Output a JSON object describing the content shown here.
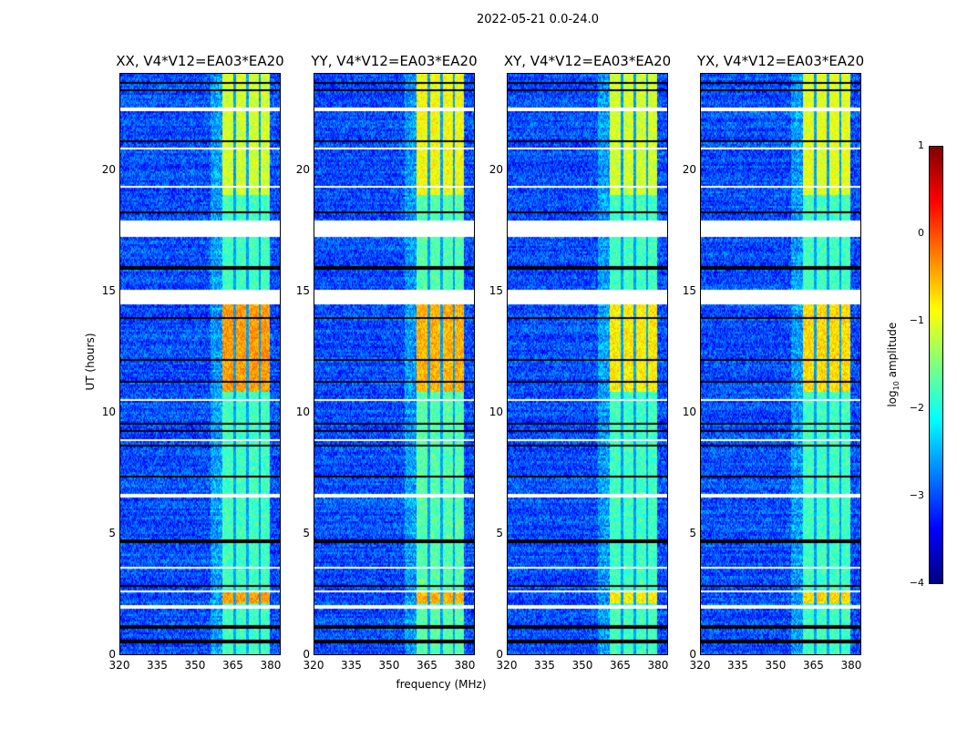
{
  "title": "2022-05-21 0.0-24.0",
  "xlabel": "frequency (MHz)",
  "ylabel": "UT (hours)",
  "chart_data": [
    {
      "type": "heatmap",
      "title": "XX, V4*V12=EA03*EA20",
      "xlim": [
        320,
        384
      ],
      "ylim": [
        0,
        24
      ],
      "band_level": -1.8,
      "bright_level": -0.4,
      "upper_level": -1.1
    },
    {
      "type": "heatmap",
      "title": "YY, V4*V12=EA03*EA20",
      "xlim": [
        320,
        384
      ],
      "ylim": [
        0,
        24
      ],
      "band_level": -1.7,
      "bright_level": -0.5,
      "upper_level": -0.9
    },
    {
      "type": "heatmap",
      "title": "XY, V4*V12=EA03*EA20",
      "xlim": [
        320,
        384
      ],
      "ylim": [
        0,
        24
      ],
      "band_level": -1.8,
      "bright_level": -0.8,
      "upper_level": -1.1
    },
    {
      "type": "heatmap",
      "title": "YX, V4*V12=EA03*EA20",
      "xlim": [
        320,
        384
      ],
      "ylim": [
        0,
        24
      ],
      "band_level": -1.8,
      "bright_level": -0.7,
      "upper_level": -1.0
    }
  ],
  "shared": {
    "xticks": [
      "320",
      "335",
      "350",
      "365",
      "380"
    ],
    "xtick_values": [
      320,
      335,
      350,
      365,
      380
    ],
    "yticks": [
      "0",
      "5",
      "10",
      "15",
      "20"
    ],
    "ytick_values": [
      0,
      5,
      10,
      15,
      20
    ],
    "background_level": -3.0,
    "band_mhz": [
      360.5,
      379.5
    ],
    "channel_gaps_mhz": [
      365.5,
      370.5,
      375.5
    ],
    "bright_hours": [
      [
        10.9,
        14.5
      ],
      [
        2.2,
        2.6
      ]
    ],
    "upper_hours": [
      19.0,
      24.0
    ],
    "flagged_hours": [
      [
        17.3,
        17.95
      ],
      [
        14.5,
        15.1
      ],
      [
        6.55,
        6.7
      ],
      [
        2.6,
        2.72
      ],
      [
        1.95,
        2.08
      ],
      [
        22.45,
        22.6
      ],
      [
        15.3,
        15.35
      ],
      [
        19.3,
        19.35
      ],
      [
        20.9,
        20.95
      ],
      [
        3.6,
        3.65
      ],
      [
        7.1,
        7.15
      ],
      [
        8.9,
        8.95
      ],
      [
        10.55,
        10.6
      ]
    ],
    "black_hours": [
      [
        23.6
      ],
      [
        23.3
      ],
      [
        21.2
      ],
      [
        18.3
      ],
      [
        16.0
      ],
      [
        13.9
      ],
      [
        12.2
      ],
      [
        11.3
      ],
      [
        9.6
      ],
      [
        9.3
      ],
      [
        8.7
      ],
      [
        7.4
      ],
      [
        4.8
      ],
      [
        4.7
      ],
      [
        2.9
      ],
      [
        1.2
      ],
      [
        0.6
      ]
    ],
    "colorbar": {
      "label": "log10 amplitude",
      "label_base": "log",
      "label_sub": "10",
      "label_rest": " amplitude",
      "range": [
        -4,
        1
      ],
      "ticks": [
        "1",
        "0",
        "−1",
        "−2",
        "−3",
        "−4"
      ],
      "tick_values": [
        1,
        0,
        -1,
        -2,
        -3,
        -4
      ]
    }
  }
}
